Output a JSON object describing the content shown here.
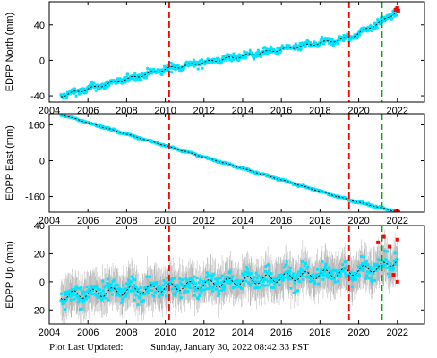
{
  "footer": {
    "label": "Plot Last Updated:",
    "value": "Sunday, January 30, 2022 08:42:33 PST"
  },
  "colors": {
    "points": "#00e5ff",
    "errorbars": "#a0a0a0",
    "model_line": "#000000",
    "recent_points": "#ff0000",
    "event_red": "#ff0000",
    "event_green": "#00aa00"
  },
  "chart_data": [
    {
      "type": "scatter",
      "ylabel": "EDPP North (mm)",
      "xlim": [
        2004,
        2023.4
      ],
      "ylim": [
        -47,
        66
      ],
      "yticks": [
        -40,
        0,
        40
      ],
      "xticks": [
        2004,
        2006,
        2008,
        2010,
        2012,
        2014,
        2016,
        2018,
        2020,
        2022
      ],
      "trend": {
        "x": [
          2004.6,
          2010.2,
          2019.5,
          2021.3,
          2022.0
        ],
        "y": [
          -40,
          -9,
          25,
          45,
          56
        ]
      },
      "scatter_halfwidth": 4,
      "error_halfwidth": 2,
      "last_points": {
        "x": [
          2021.9,
          2022.0,
          2022.05
        ],
        "y": [
          57,
          59,
          56
        ]
      },
      "events": [
        {
          "x": 2010.2,
          "color": "red"
        },
        {
          "x": 2019.5,
          "color": "red"
        },
        {
          "x": 2021.2,
          "color": "green"
        }
      ]
    },
    {
      "type": "scatter",
      "ylabel": "EDPP East (mm)",
      "xlim": [
        2004,
        2023.4
      ],
      "ylim": [
        -230,
        210
      ],
      "yticks": [
        -160,
        0,
        160
      ],
      "xticks": [
        2004,
        2006,
        2008,
        2010,
        2012,
        2014,
        2016,
        2018,
        2020,
        2022
      ],
      "trend": {
        "x": [
          2004.6,
          2010.2,
          2019.5,
          2021.3,
          2022.0
        ],
        "y": [
          206,
          62,
          -175,
          -214,
          -228
        ]
      },
      "scatter_halfwidth": 4,
      "error_halfwidth": 2,
      "last_points": {
        "x": [
          2021.9,
          2022.0,
          2022.05
        ],
        "y": [
          -228,
          -226,
          -229
        ]
      },
      "events": [
        {
          "x": 2010.2,
          "color": "red"
        },
        {
          "x": 2019.5,
          "color": "red"
        },
        {
          "x": 2021.2,
          "color": "green"
        }
      ]
    },
    {
      "type": "scatter",
      "ylabel": "EDPP Up (mm)",
      "xlim": [
        2004,
        2023.4
      ],
      "ylim": [
        -30,
        40
      ],
      "yticks": [
        -20,
        0,
        20,
        40
      ],
      "xticks": [
        2004,
        2006,
        2008,
        2010,
        2012,
        2014,
        2016,
        2018,
        2020,
        2022
      ],
      "trend": {
        "x": [
          2004.6,
          2010.2,
          2019.5,
          2021.3,
          2022.0
        ],
        "y": [
          -10,
          -4,
          7,
          11,
          16
        ]
      },
      "scatter_halfwidth": 7,
      "error_halfwidth": 12,
      "seasonal_amplitude": 3,
      "last_points": {
        "x": [
          2021.0,
          2021.3,
          2021.6,
          2021.8,
          2022.0,
          2022.0
        ],
        "y": [
          28,
          32,
          25,
          5,
          30,
          0
        ]
      },
      "events": [
        {
          "x": 2010.2,
          "color": "red"
        },
        {
          "x": 2019.5,
          "color": "red"
        },
        {
          "x": 2021.2,
          "color": "green"
        }
      ]
    }
  ]
}
